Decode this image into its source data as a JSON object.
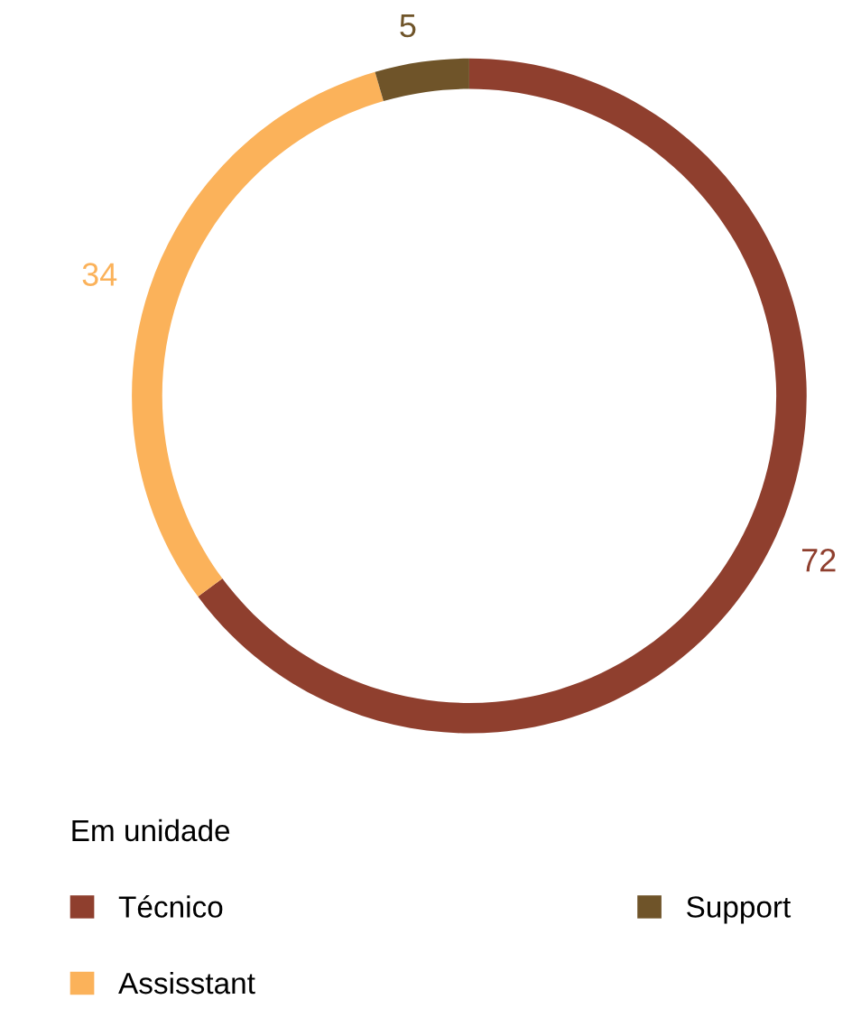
{
  "chart_data": {
    "type": "donut",
    "categories": [
      "Técnico",
      "Assisstant",
      "Support"
    ],
    "values": [
      72,
      34,
      5
    ],
    "colors": [
      "#8f3f2e",
      "#fbb25a",
      "#6f5429"
    ],
    "legend_title": "Em unidade",
    "legend": "bottom",
    "data_labels": true
  }
}
